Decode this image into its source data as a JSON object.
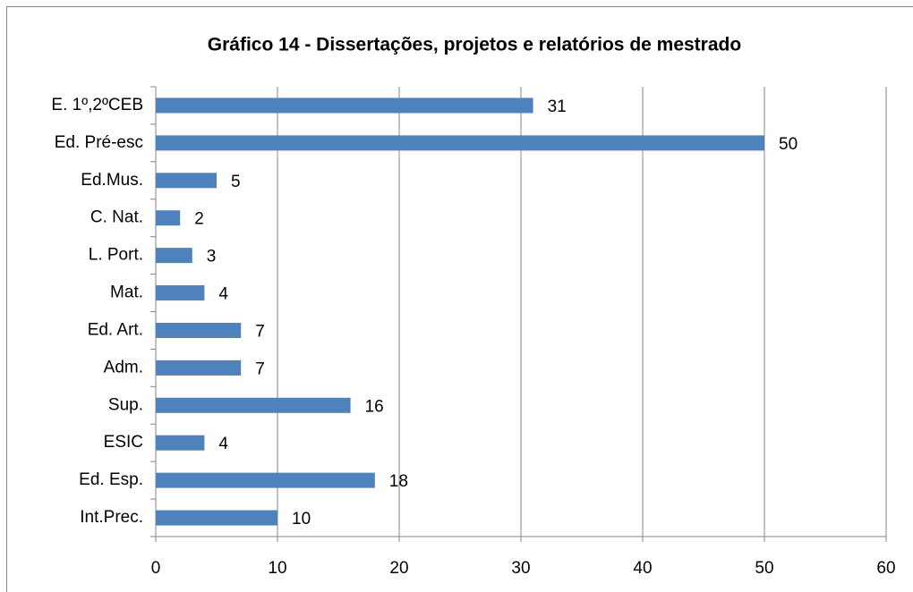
{
  "chart_data": {
    "type": "barh",
    "title": "Gráfico 14 - Dissertações, projetos e relatórios de mestrado",
    "categories": [
      "E. 1º,2ºCEB",
      "Ed. Pré-esc",
      "Ed.Mus.",
      "C. Nat.",
      "L. Port.",
      "Mat.",
      "Ed. Art.",
      "Adm.",
      "Sup.",
      "ESIC",
      "Ed. Esp.",
      "Int.Prec."
    ],
    "values": [
      31,
      50,
      5,
      2,
      3,
      4,
      7,
      7,
      16,
      4,
      18,
      10
    ],
    "color": "#4f81bd",
    "xlim": [
      0,
      60
    ],
    "xticks": [
      0,
      10,
      20,
      30,
      40,
      50,
      60
    ],
    "grid": true
  }
}
